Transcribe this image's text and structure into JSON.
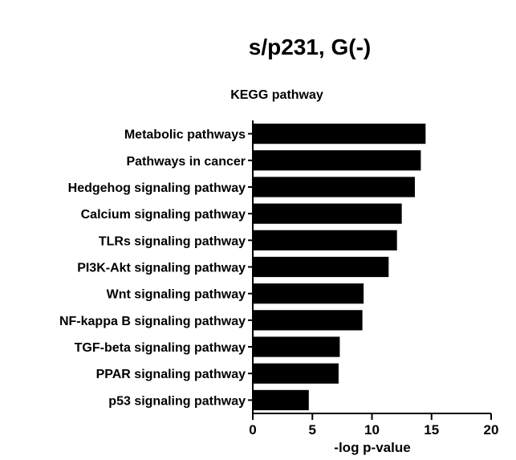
{
  "chart_data": {
    "type": "bar",
    "orientation": "horizontal",
    "title": "s/p231, G(-)",
    "subtitle": "KEGG pathway",
    "xlabel": "-log p-value",
    "ylabel": "",
    "xlim": [
      0,
      20
    ],
    "x_ticks": [
      0,
      5,
      10,
      15,
      20
    ],
    "grid": false,
    "bar_color": "#000000",
    "categories": [
      "Metabolic pathways",
      "Pathways in cancer",
      "Hedgehog signaling pathway",
      "Calcium signaling pathway",
      "TLRs signaling pathway",
      "PI3K-Akt signaling pathway",
      "Wnt signaling pathway",
      "NF-kappa B signaling pathway",
      "TGF-beta signaling pathway",
      "PPAR signaling pathway",
      "p53 signaling pathway"
    ],
    "values": [
      14.5,
      14.1,
      13.6,
      12.5,
      12.1,
      11.4,
      9.3,
      9.2,
      7.3,
      7.2,
      4.7
    ]
  }
}
